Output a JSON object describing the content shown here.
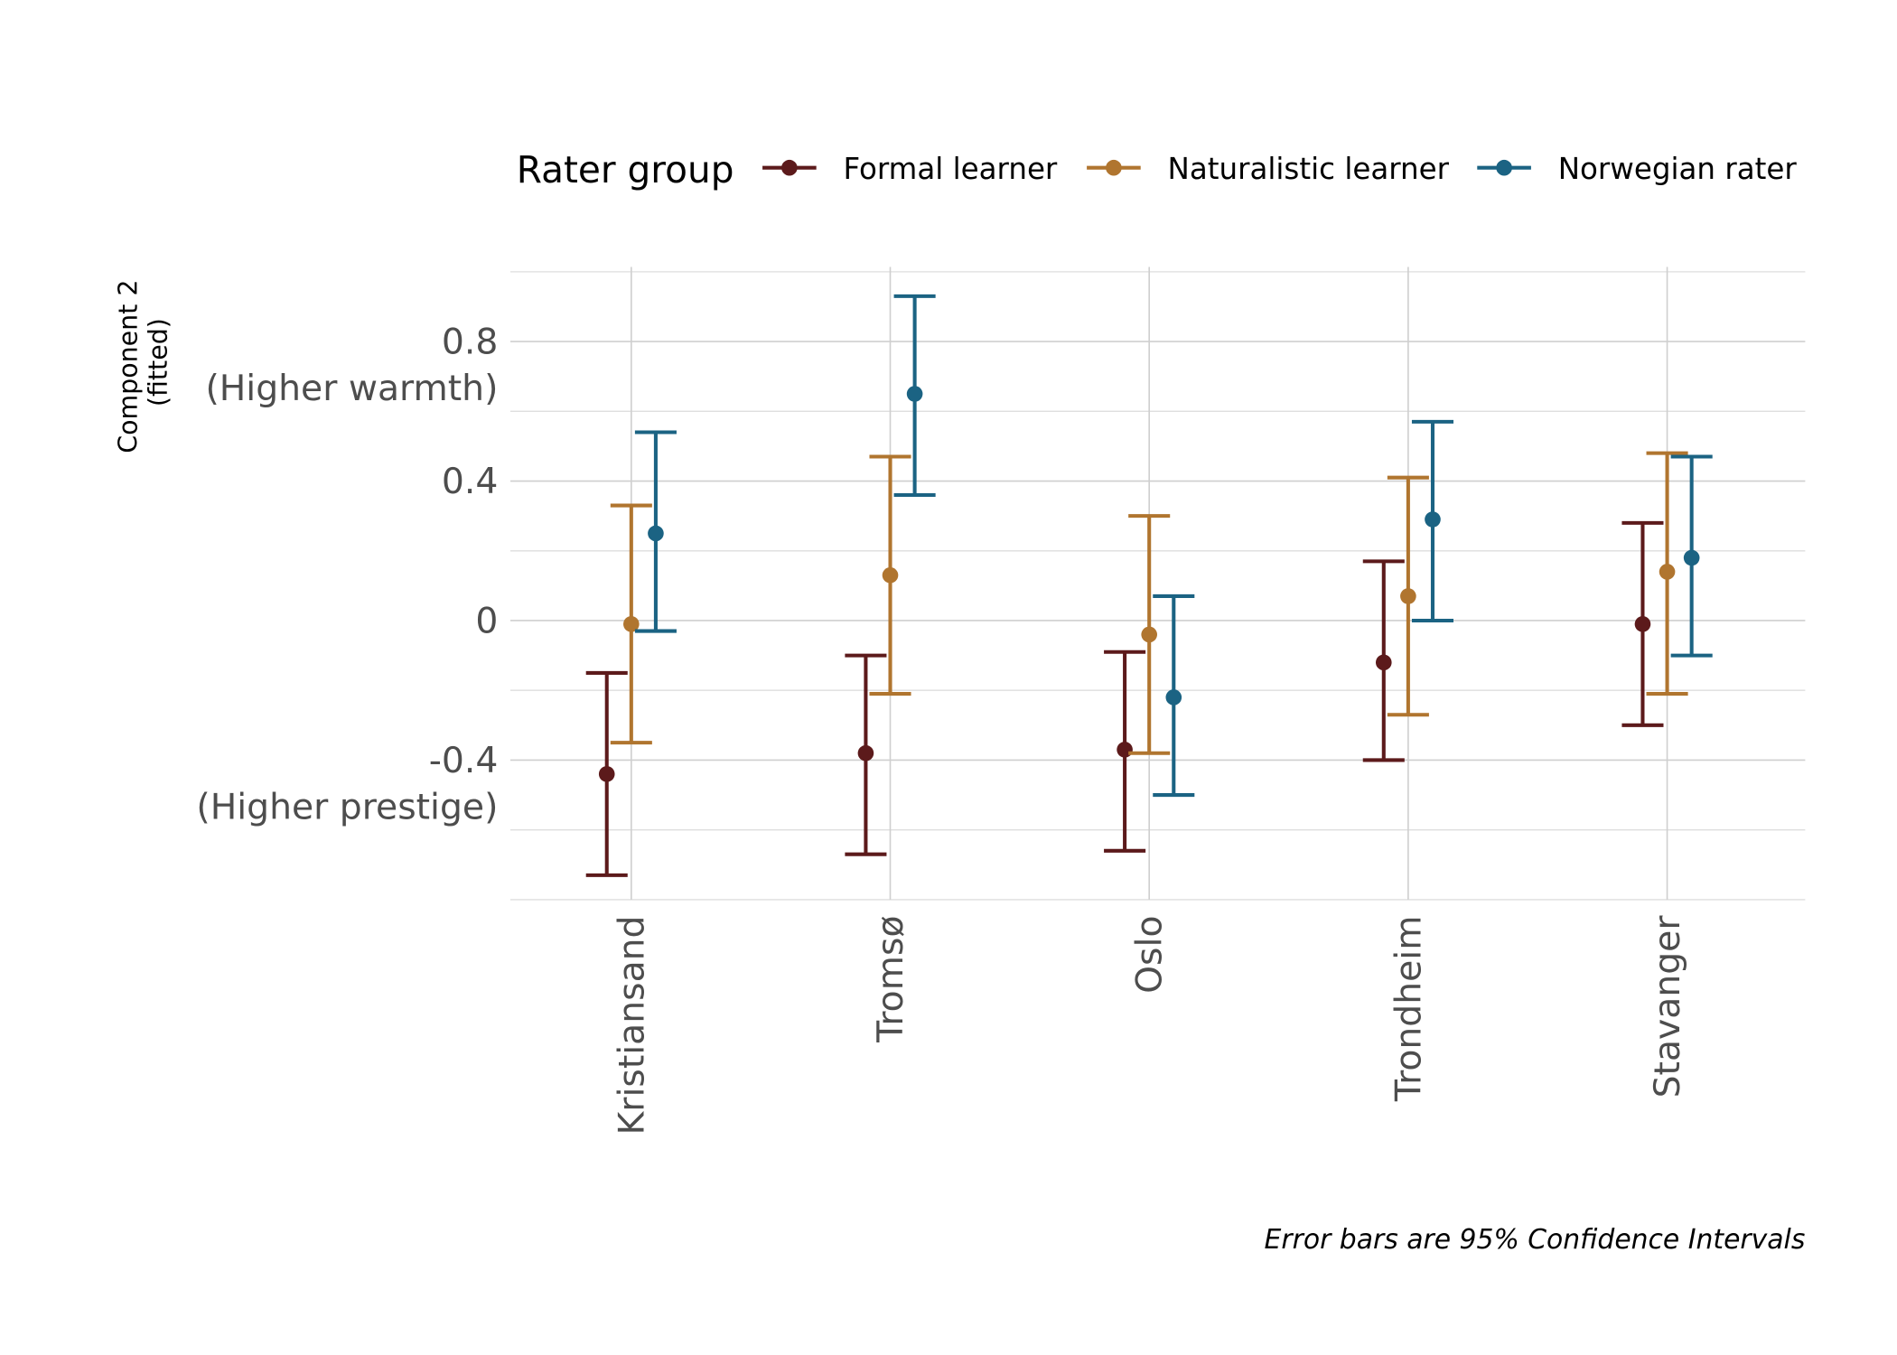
{
  "chart_data": {
    "type": "errorbar-dot",
    "title": "",
    "caption": "Error bars are 95% Confidence Intervals",
    "xlabel": "",
    "ylabel": [
      "Component 2",
      "(fitted)"
    ],
    "ylim": [
      -0.8,
      1.014
    ],
    "y_major_ticks": [
      {
        "value": 0.8,
        "label": [
          "0.8",
          "(Higher warmth)"
        ]
      },
      {
        "value": 0.4,
        "label": [
          "0.4"
        ]
      },
      {
        "value": 0,
        "label": [
          "0"
        ]
      },
      {
        "value": -0.4,
        "label": [
          "-0.4",
          "(Higher prestige)"
        ]
      }
    ],
    "y_minor_ticks": [
      0.6,
      0.2,
      -0.2,
      -0.6
    ],
    "grid": true,
    "categories": [
      "Kristiansand",
      "Tromsø",
      "Oslo",
      "Trondheim",
      "Stavanger"
    ],
    "legend": {
      "title": "Rater group",
      "placement": "top"
    },
    "series": [
      {
        "name": "Formal learner",
        "color": "#5c1a1b",
        "values": [
          -0.44,
          -0.38,
          -0.37,
          -0.12,
          -0.01
        ],
        "lower": [
          -0.73,
          -0.67,
          -0.66,
          -0.4,
          -0.3
        ],
        "upper": [
          -0.15,
          -0.1,
          -0.09,
          0.17,
          0.28
        ]
      },
      {
        "name": "Naturalistic learner",
        "color": "#b0752f",
        "values": [
          -0.01,
          0.13,
          -0.04,
          0.07,
          0.14
        ],
        "lower": [
          -0.35,
          -0.21,
          -0.38,
          -0.27,
          -0.21
        ],
        "upper": [
          0.33,
          0.47,
          0.3,
          0.41,
          0.48
        ]
      },
      {
        "name": "Norwegian rater",
        "color": "#1b6383",
        "values": [
          0.25,
          0.65,
          -0.22,
          0.29,
          0.18
        ],
        "lower": [
          -0.03,
          0.36,
          -0.5,
          0.0,
          -0.1
        ],
        "upper": [
          0.54,
          0.93,
          0.07,
          0.57,
          0.47
        ]
      }
    ]
  }
}
